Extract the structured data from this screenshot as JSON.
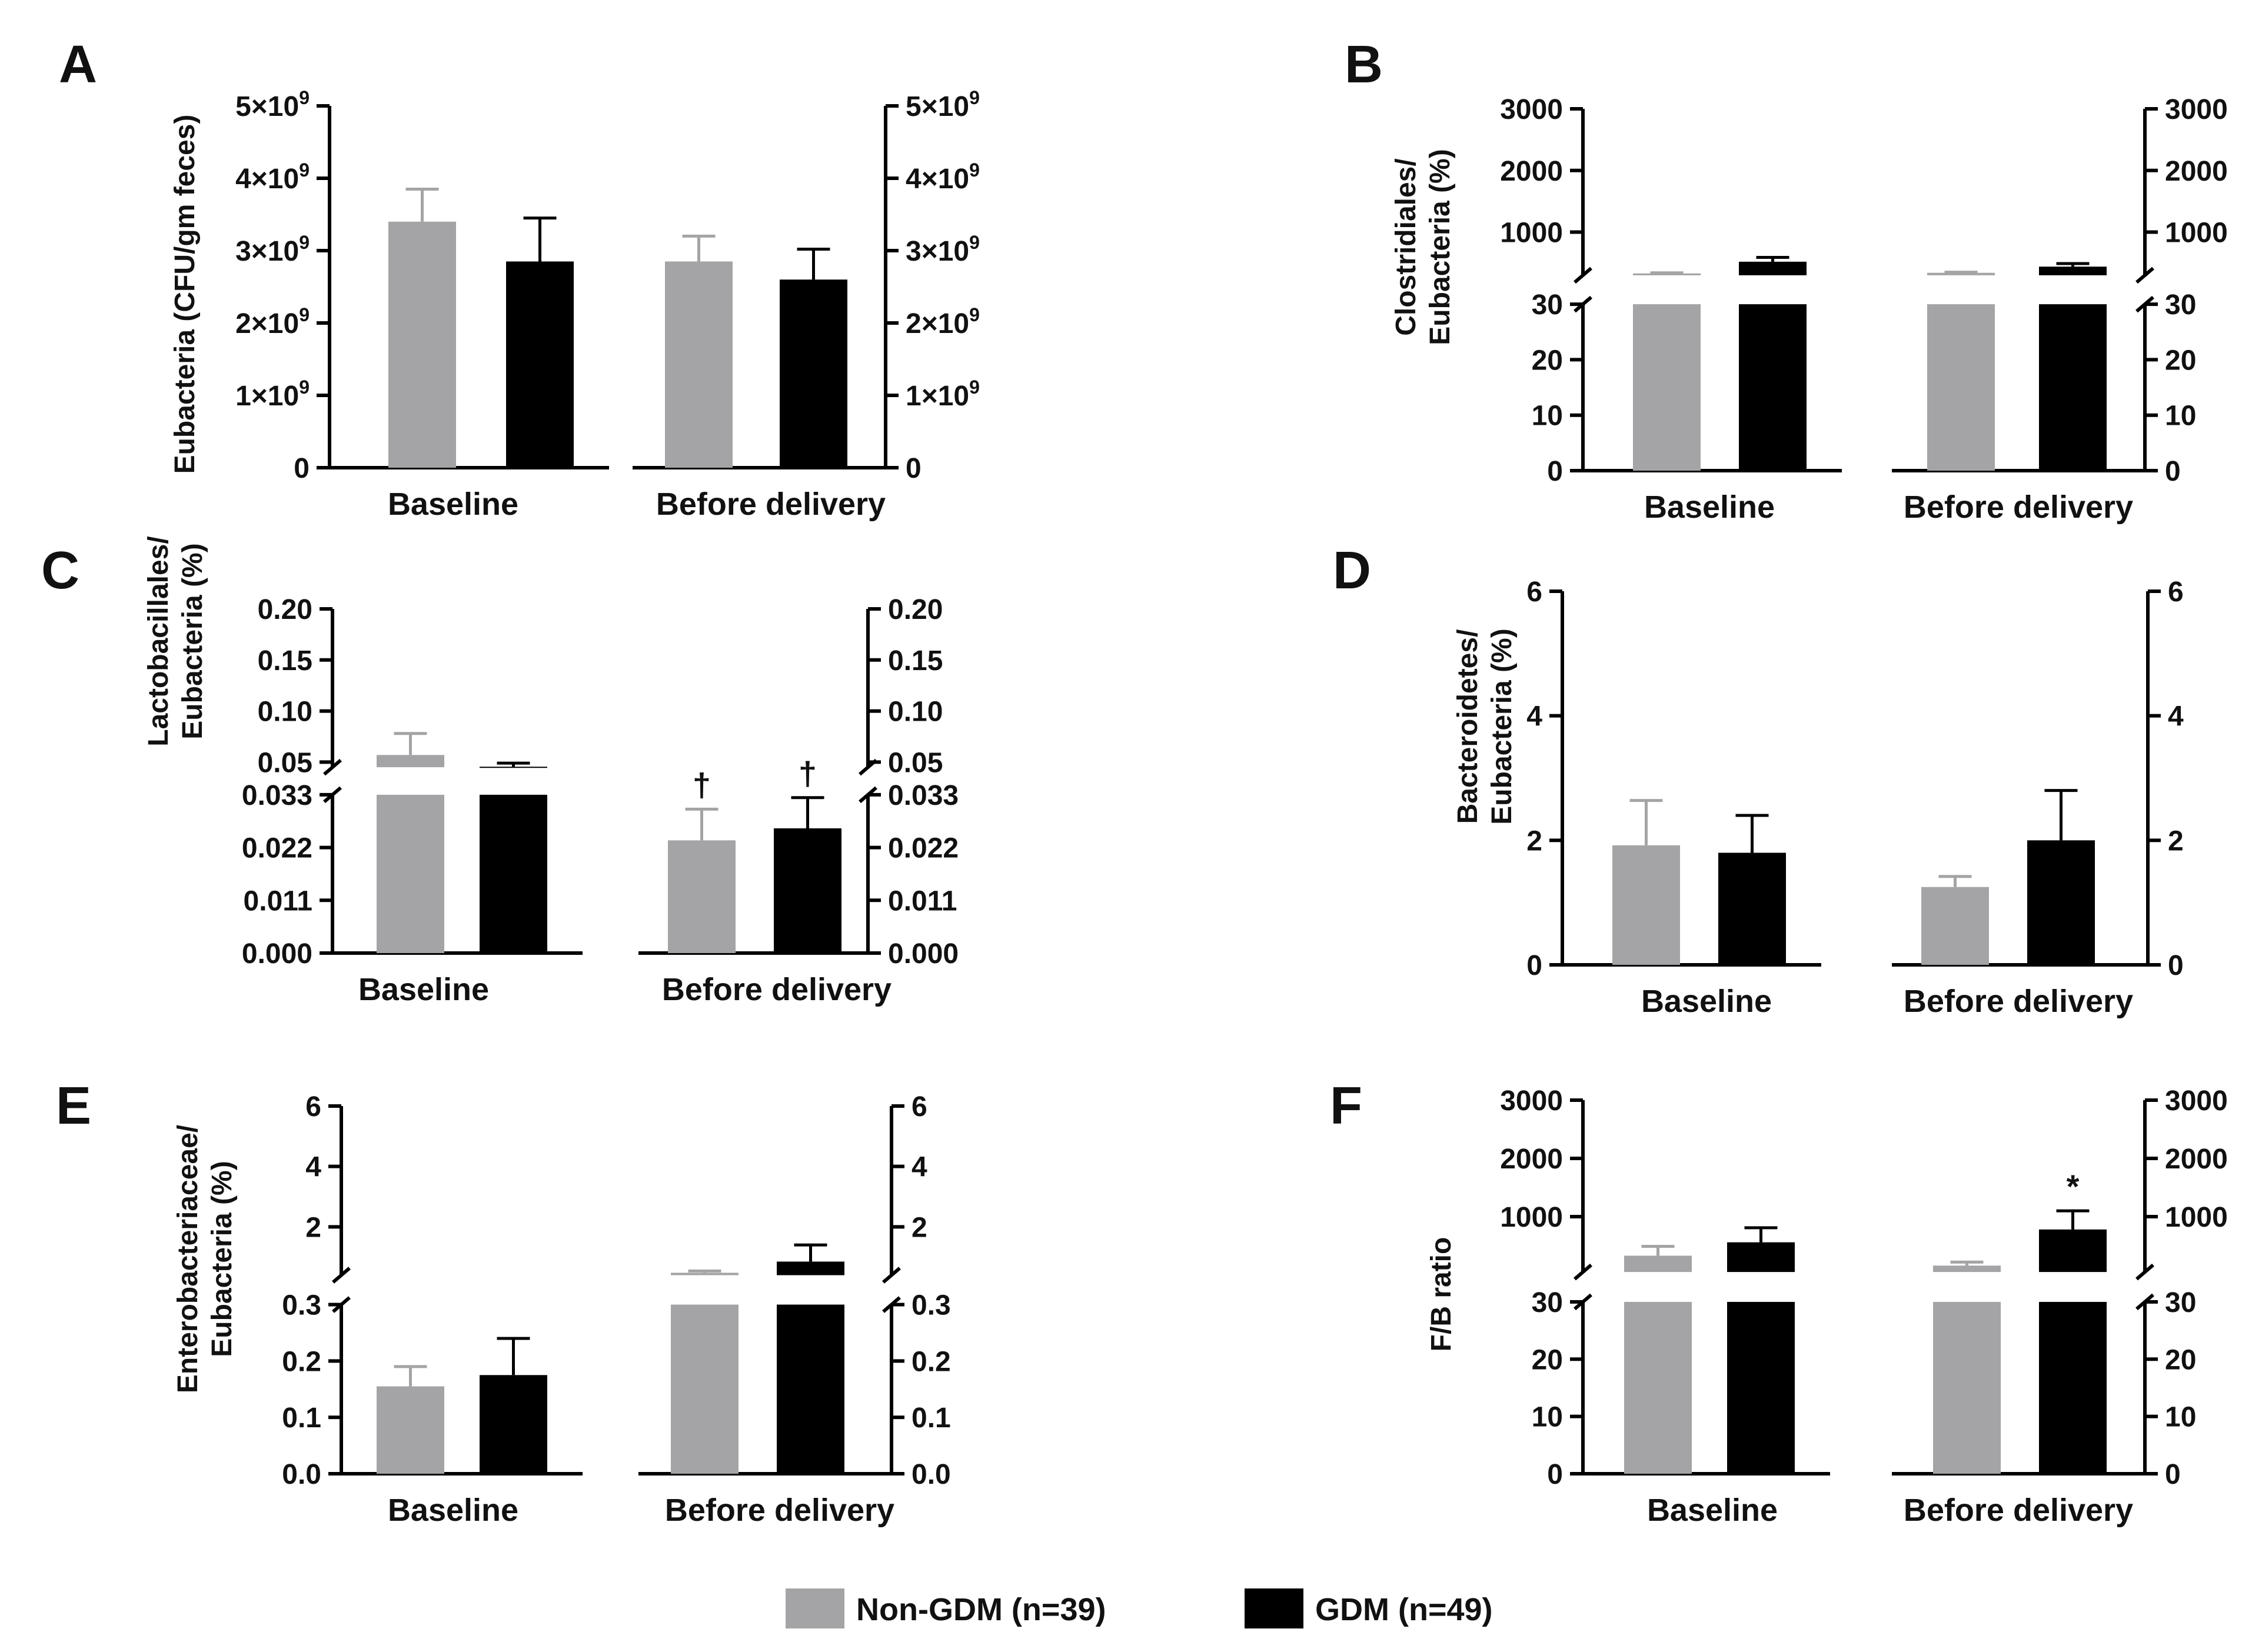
{
  "legend": [
    {
      "label": "Non-GDM (n=39)",
      "color": "#a4a4a6"
    },
    {
      "label": "GDM (n=49)",
      "color": "#000000"
    }
  ],
  "chart_data": [
    {
      "panel": "A",
      "type": "bar",
      "ylabel": [
        "Eubacteria (CFU/gm feces)"
      ],
      "categories": [
        "Baseline",
        "Before delivery"
      ],
      "ylim": [
        0,
        5000000000.0
      ],
      "segments": [
        {
          "min": 0,
          "max": 5000000000.0,
          "frac": [
            0,
            1
          ]
        }
      ],
      "ticks": [
        {
          "v": 0,
          "m": "0"
        },
        {
          "v": 1000000000.0,
          "m": "1×10",
          "e": "9"
        },
        {
          "v": 2000000000.0,
          "m": "2×10",
          "e": "9"
        },
        {
          "v": 3000000000.0,
          "m": "3×10",
          "e": "9"
        },
        {
          "v": 4000000000.0,
          "m": "4×10",
          "e": "9"
        },
        {
          "v": 5000000000.0,
          "m": "5×10",
          "e": "9"
        }
      ],
      "series": [
        {
          "name": "Non-GDM (n=39)",
          "values": [
            3400000000.0,
            2850000000.0
          ],
          "errors": [
            450000000.0,
            350000000.0
          ]
        },
        {
          "name": "GDM (n=49)",
          "values": [
            2850000000.0,
            2600000000.0
          ],
          "errors": [
            600000000.0,
            420000000.0
          ]
        }
      ],
      "annotations": []
    },
    {
      "panel": "B",
      "type": "bar",
      "ylabel": [
        "Clostridiales/",
        "Eubacteria (%)"
      ],
      "categories": [
        "Baseline",
        "Before delivery"
      ],
      "ylim": [
        0,
        3000
      ],
      "axis_break": [
        30,
        300
      ],
      "segments": [
        {
          "min": 0,
          "max": 30,
          "frac": [
            0,
            0.46
          ]
        },
        {
          "min": 300,
          "max": 3000,
          "frac": [
            0.54,
            1
          ]
        }
      ],
      "ticks": [
        {
          "v": 0,
          "m": "0"
        },
        {
          "v": 10,
          "m": "10"
        },
        {
          "v": 20,
          "m": "20"
        },
        {
          "v": 30,
          "m": "30"
        },
        {
          "v": 1000,
          "m": "1000"
        },
        {
          "v": 2000,
          "m": "2000"
        },
        {
          "v": 3000,
          "m": "3000"
        }
      ],
      "series": [
        {
          "name": "Non-GDM (n=39)",
          "values": [
            330,
            340
          ],
          "errors": [
            10,
            10
          ]
        },
        {
          "name": "GDM (n=49)",
          "values": [
            520,
            440
          ],
          "errors": [
            70,
            50
          ]
        }
      ],
      "annotations": []
    },
    {
      "panel": "C",
      "type": "bar",
      "ylabel": [
        "Lactobacillales/",
        "Eubacteria (%)"
      ],
      "categories": [
        "Baseline",
        "Before delivery"
      ],
      "ylim": [
        0,
        0.2
      ],
      "axis_break": [
        0.033,
        0.045
      ],
      "segments": [
        {
          "min": 0,
          "max": 0.033,
          "frac": [
            0,
            0.46
          ]
        },
        {
          "min": 0.045,
          "max": 0.2,
          "frac": [
            0.54,
            1
          ]
        }
      ],
      "ticks": [
        {
          "v": 0,
          "m": "0.000"
        },
        {
          "v": 0.011,
          "m": "0.011"
        },
        {
          "v": 0.022,
          "m": "0.022"
        },
        {
          "v": 0.033,
          "m": "0.033"
        },
        {
          "v": 0.05,
          "m": "0.05"
        },
        {
          "v": 0.1,
          "m": "0.10"
        },
        {
          "v": 0.15,
          "m": "0.15"
        },
        {
          "v": 0.2,
          "m": "0.20"
        }
      ],
      "series": [
        {
          "name": "Non-GDM (n=39)",
          "values": [
            0.057,
            0.0235
          ],
          "errors": [
            0.021,
            0.0065
          ]
        },
        {
          "name": "GDM (n=49)",
          "values": [
            0.0455,
            0.026
          ],
          "errors": [
            0.0035,
            0.0064
          ]
        }
      ],
      "annotations": [
        {
          "text": "†",
          "category": 1,
          "series": 0
        },
        {
          "text": "†",
          "category": 1,
          "series": 1
        }
      ]
    },
    {
      "panel": "D",
      "type": "bar",
      "ylabel": [
        "Bacteroidetes/",
        "Eubacteria (%)"
      ],
      "categories": [
        "Baseline",
        "Before delivery"
      ],
      "ylim": [
        0,
        6
      ],
      "segments": [
        {
          "min": 0,
          "max": 6,
          "frac": [
            0,
            1
          ]
        }
      ],
      "ticks": [
        {
          "v": 0,
          "m": "0"
        },
        {
          "v": 2,
          "m": "2"
        },
        {
          "v": 4,
          "m": "4"
        },
        {
          "v": 6,
          "m": "6"
        }
      ],
      "series": [
        {
          "name": "Non-GDM (n=39)",
          "values": [
            1.92,
            1.25
          ],
          "errors": [
            0.72,
            0.17
          ]
        },
        {
          "name": "GDM (n=49)",
          "values": [
            1.8,
            2.0
          ],
          "errors": [
            0.6,
            0.8
          ]
        }
      ],
      "annotations": []
    },
    {
      "panel": "E",
      "type": "bar",
      "ylabel": [
        "Enterobacteriaceae/",
        "Eubacteria (%)"
      ],
      "categories": [
        "Baseline",
        "Before delivery"
      ],
      "ylim": [
        0,
        6
      ],
      "axis_break": [
        0.3,
        0.4
      ],
      "segments": [
        {
          "min": 0,
          "max": 0.3,
          "frac": [
            0,
            0.46
          ]
        },
        {
          "min": 0.4,
          "max": 6,
          "frac": [
            0.54,
            1
          ]
        }
      ],
      "ticks": [
        {
          "v": 0,
          "m": "0.0"
        },
        {
          "v": 0.1,
          "m": "0.1"
        },
        {
          "v": 0.2,
          "m": "0.2"
        },
        {
          "v": 0.3,
          "m": "0.3"
        },
        {
          "v": 2,
          "m": "2"
        },
        {
          "v": 4,
          "m": "4"
        },
        {
          "v": 6,
          "m": "6"
        }
      ],
      "series": [
        {
          "name": "Non-GDM (n=39)",
          "values": [
            0.155,
            0.48
          ],
          "errors": [
            0.035,
            0.06
          ]
        },
        {
          "name": "GDM (n=49)",
          "values": [
            0.175,
            0.85
          ],
          "errors": [
            0.065,
            0.55
          ]
        }
      ],
      "annotations": []
    },
    {
      "panel": "F",
      "type": "bar",
      "ylabel": [
        "F/B ratio"
      ],
      "categories": [
        "Baseline",
        "Before delivery"
      ],
      "ylim": [
        0,
        3000
      ],
      "axis_break": [
        30,
        50
      ],
      "segments": [
        {
          "min": 0,
          "max": 30,
          "frac": [
            0,
            0.46
          ]
        },
        {
          "min": 50,
          "max": 3000,
          "frac": [
            0.54,
            1
          ]
        }
      ],
      "ticks": [
        {
          "v": 0,
          "m": "0"
        },
        {
          "v": 10,
          "m": "10"
        },
        {
          "v": 20,
          "m": "20"
        },
        {
          "v": 30,
          "m": "30"
        },
        {
          "v": 1000,
          "m": "1000"
        },
        {
          "v": 2000,
          "m": "2000"
        },
        {
          "v": 3000,
          "m": "3000"
        }
      ],
      "series": [
        {
          "name": "Non-GDM (n=39)",
          "values": [
            330,
            160
          ],
          "errors": [
            160,
            60
          ]
        },
        {
          "name": "GDM (n=49)",
          "values": [
            560,
            780
          ],
          "errors": [
            250,
            320
          ]
        }
      ],
      "annotations": [
        {
          "text": "*",
          "category": 1,
          "series": 1
        }
      ]
    }
  ]
}
